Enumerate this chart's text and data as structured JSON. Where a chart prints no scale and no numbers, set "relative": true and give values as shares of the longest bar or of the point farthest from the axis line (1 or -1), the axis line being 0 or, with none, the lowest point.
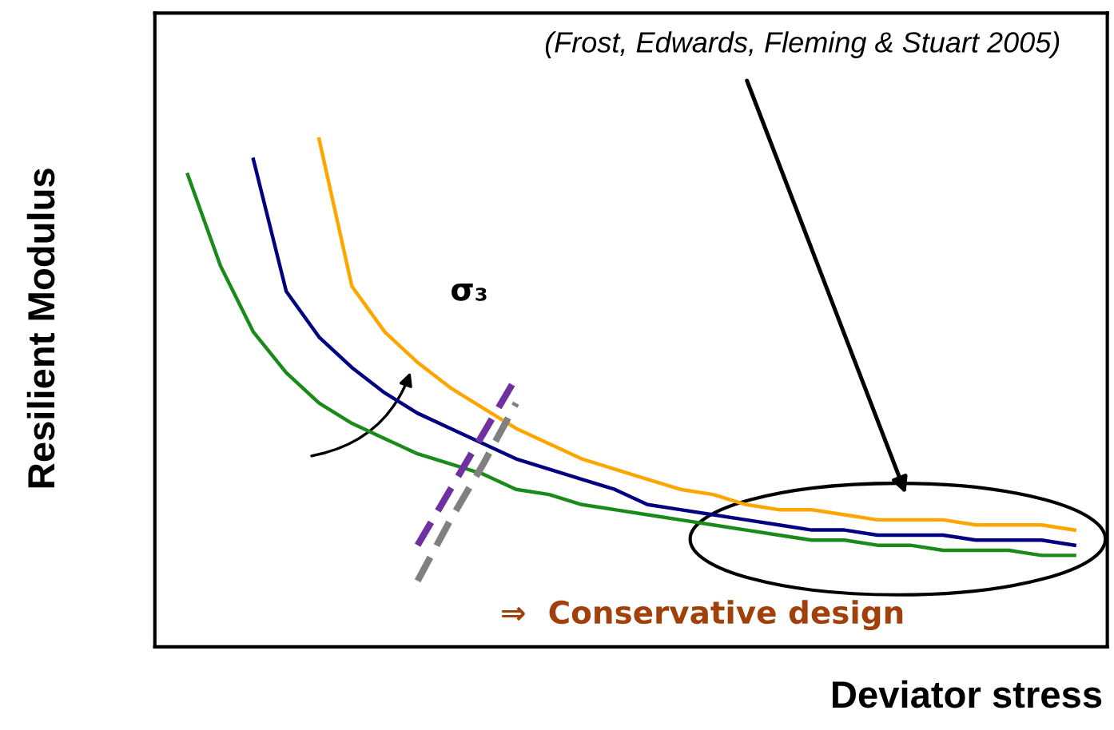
{
  "chart_data": {
    "type": "line",
    "relative": true,
    "xlabel": "Deviator stress",
    "ylabel": "Resilient Modulus",
    "marker": "none",
    "line_style": "solid",
    "categories": [
      null,
      null,
      null,
      null,
      null,
      null,
      null,
      null,
      null,
      null,
      null,
      null,
      null,
      null,
      null,
      null,
      null,
      null,
      null,
      null,
      null,
      null,
      null,
      null,
      null,
      null,
      null,
      null
    ],
    "series": [
      {
        "color": "#1a8a1a",
        "values": [
          0.93,
          0.75,
          0.62,
          0.54,
          0.48,
          0.44,
          0.41,
          0.38,
          0.36,
          0.34,
          0.31,
          0.3,
          0.28,
          0.27,
          0.26,
          0.25,
          0.24,
          0.23,
          0.22,
          0.21,
          0.21,
          0.2,
          0.2,
          0.19,
          0.19,
          0.19,
          0.18,
          0.18
        ]
      },
      {
        "color": "#000080",
        "values": [
          null,
          null,
          0.96,
          0.7,
          0.61,
          0.55,
          0.5,
          0.46,
          0.43,
          0.4,
          0.37,
          0.35,
          0.33,
          0.31,
          0.28,
          0.27,
          0.26,
          0.25,
          0.24,
          0.23,
          0.23,
          0.22,
          0.22,
          0.22,
          0.21,
          0.21,
          0.21,
          0.2
        ]
      },
      {
        "color": "#ffa500",
        "values": [
          null,
          null,
          null,
          null,
          1.0,
          0.71,
          0.62,
          0.56,
          0.51,
          0.47,
          0.43,
          0.4,
          0.37,
          0.35,
          0.33,
          0.31,
          0.3,
          0.28,
          0.27,
          0.27,
          0.26,
          0.25,
          0.25,
          0.25,
          0.24,
          0.24,
          0.24,
          0.23
        ]
      },
      {
        "color": "#7030a0",
        "line_style": "dashed",
        "values": [
          null,
          null,
          null,
          null,
          null,
          null,
          null,
          0.2,
          0.31,
          0.42,
          0.53,
          null,
          null,
          null,
          null,
          null,
          null,
          null,
          null,
          null,
          null,
          null,
          null,
          null,
          null,
          null,
          null,
          null
        ]
      },
      {
        "color": "#808080",
        "line_style": "dashed",
        "values": [
          null,
          null,
          null,
          null,
          null,
          null,
          null,
          0.13,
          0.25,
          0.36,
          0.48,
          null,
          null,
          null,
          null,
          null,
          null,
          null,
          null,
          null,
          null,
          null,
          null,
          null,
          null,
          null,
          null,
          null
        ]
      }
    ],
    "annotations": [
      "(Frost, Edwards, Fleming & Stuart 2005)",
      "σ₃",
      "⇒  Conservative design"
    ]
  }
}
